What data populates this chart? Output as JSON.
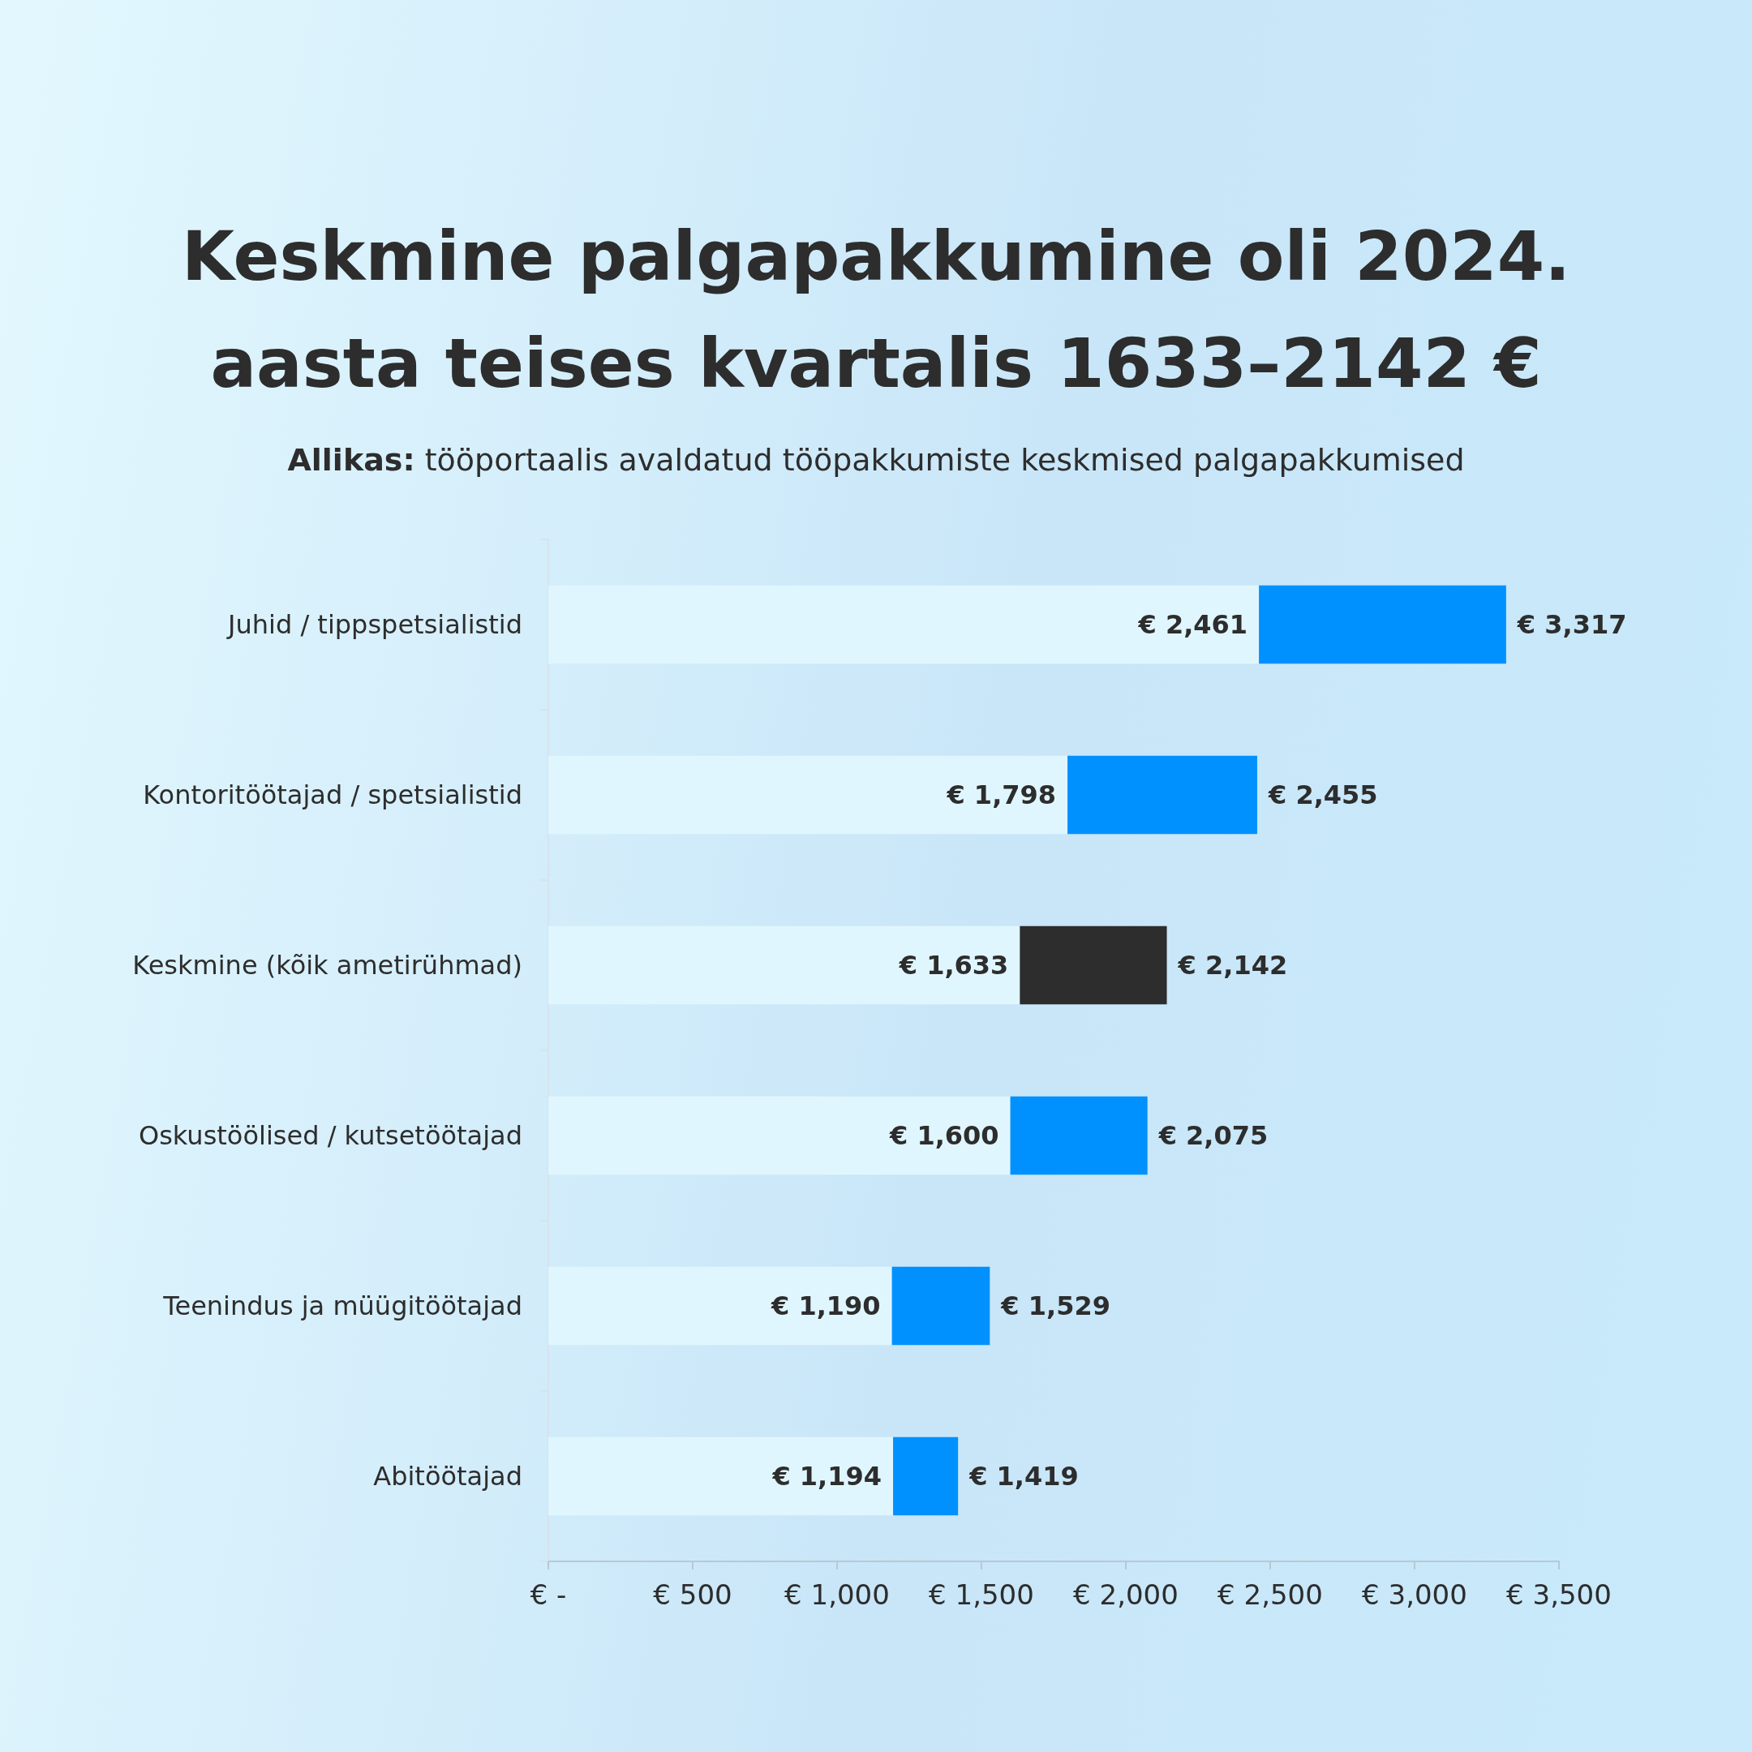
{
  "chart_data": {
    "type": "bar",
    "orientation": "horizontal",
    "stacked": true,
    "title": "Keskmine palgapakkumine oli 2024. aasta teises kvartalis 1633–2142 €",
    "annotations": [
      "Allikas: tööportaalis avaldatud tööpakkumiste keskmised palgapakkumised"
    ],
    "categories": [
      "Juhid / tippspetsialistid",
      "Kontoritöötajad / spetsialistid",
      "Keskmine (kõik ametirühmad)",
      "Oskustöölised / kutsetöötajad",
      "Teenindus ja müügitöötajad",
      "Abitöötajad"
    ],
    "series": [
      {
        "color": "#e0f6fe",
        "values": [
          2461,
          1798,
          1633,
          1600,
          1190,
          1194
        ],
        "value_labels": [
          "€ 2,461",
          "€ 1,798",
          "€ 1,633",
          "€ 1,600",
          "€ 1,190",
          "€ 1,194"
        ]
      },
      {
        "colors": [
          "#0091ff",
          "#0091ff",
          "#2d2d2d",
          "#0091ff",
          "#0091ff",
          "#0091ff"
        ],
        "values": [
          856,
          657,
          509,
          475,
          339,
          225
        ]
      }
    ],
    "totals": [
      "€ 3,317",
      "€ 2,455",
      "€ 2,142",
      "€ 2,075",
      "€ 1,529",
      "€ 1,419"
    ],
    "xlim": [
      0,
      3500
    ],
    "xticks": [
      {
        "value": 0,
        "label": "€ -"
      },
      {
        "value": 500,
        "label": "€ 500"
      },
      {
        "value": 1000,
        "label": "€ 1,000"
      },
      {
        "value": 1500,
        "label": "€ 1,500"
      },
      {
        "value": 2000,
        "label": "€ 2,000"
      },
      {
        "value": 2500,
        "label": "€ 2,500"
      },
      {
        "value": 3000,
        "label": "€ 3,000"
      },
      {
        "value": 3500,
        "label": "€ 3,500"
      }
    ],
    "grid": false
  }
}
